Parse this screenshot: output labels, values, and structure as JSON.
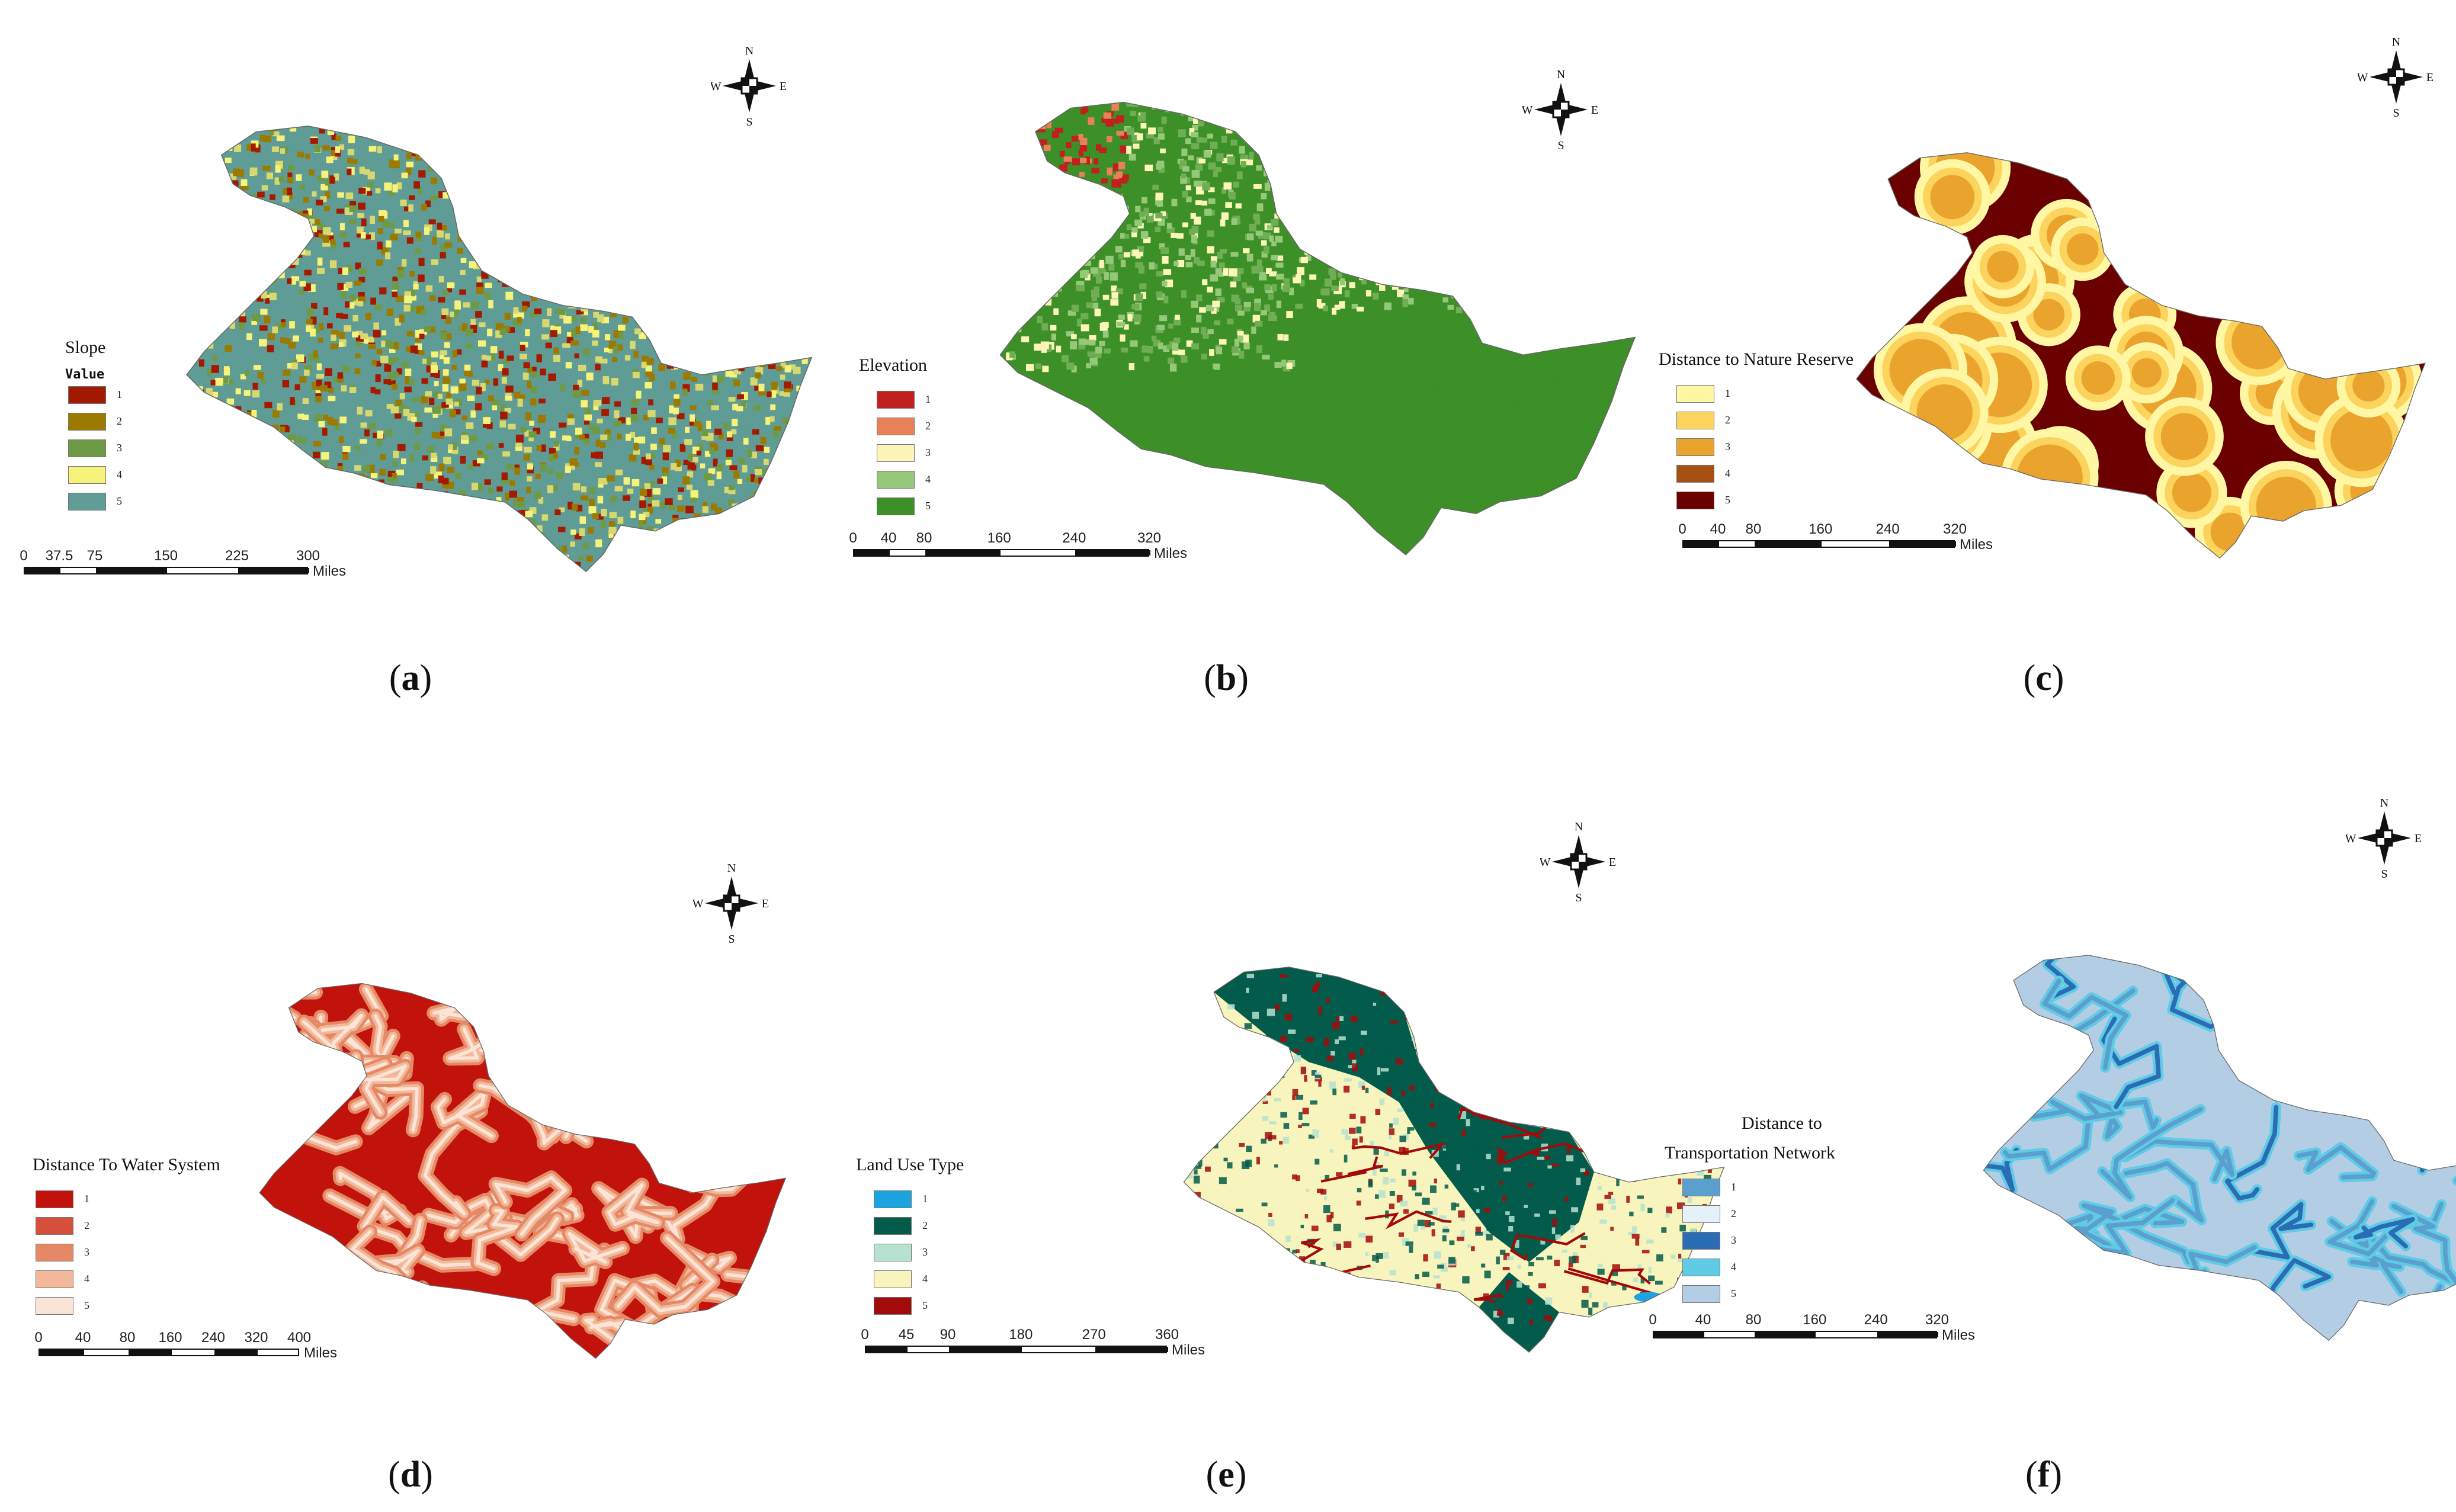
{
  "compass": {
    "n": "N",
    "s": "S",
    "e": "E",
    "w": "W"
  },
  "units": "Miles",
  "panels": [
    {
      "id": "a",
      "caption": "a",
      "legend_title": "Slope",
      "legend_subtitle": "Value",
      "classes": [
        {
          "label": "1",
          "color": "#a31a00"
        },
        {
          "label": "2",
          "color": "#9c7a00"
        },
        {
          "label": "3",
          "color": "#6e9a45"
        },
        {
          "label": "4",
          "color": "#f7f27a"
        },
        {
          "label": "5",
          "color": "#5f9c96"
        }
      ],
      "scale_ticks": [
        "0",
        "37.5",
        "75",
        "150",
        "225",
        "300"
      ],
      "map_base": "#5f9c96",
      "map_palette": [
        "#a31a00",
        "#9c7a00",
        "#6e9a45",
        "#d8d870",
        "#f7f27a"
      ]
    },
    {
      "id": "b",
      "caption": "b",
      "legend_title": "Elevation",
      "legend_subtitle": "",
      "classes": [
        {
          "label": "1",
          "color": "#c21f1f"
        },
        {
          "label": "2",
          "color": "#e8815a"
        },
        {
          "label": "3",
          "color": "#fbf5b8"
        },
        {
          "label": "4",
          "color": "#95c878"
        },
        {
          "label": "5",
          "color": "#3d8f27"
        }
      ],
      "scale_ticks": [
        "0",
        "40",
        "80",
        "160",
        "240",
        "320"
      ],
      "map_base": "#3d8f27",
      "map_palette": [
        "#c21f1f",
        "#e8815a",
        "#fbf5b8",
        "#95c878",
        "#6fae54"
      ]
    },
    {
      "id": "c",
      "caption": "c",
      "legend_title": "Distance to Nature Reserve",
      "legend_subtitle": "",
      "classes": [
        {
          "label": "1",
          "color": "#fff7a3"
        },
        {
          "label": "2",
          "color": "#fcd35c"
        },
        {
          "label": "3",
          "color": "#eaa42d"
        },
        {
          "label": "4",
          "color": "#a84f12"
        },
        {
          "label": "5",
          "color": "#6b0000"
        }
      ],
      "scale_ticks": [
        "0",
        "40",
        "80",
        "160",
        "240",
        "320"
      ],
      "map_base": "#6b0000",
      "map_palette": [
        "#fff7a3",
        "#fcd35c",
        "#eaa42d"
      ]
    },
    {
      "id": "d",
      "caption": "d",
      "legend_title": "Distance To Water System",
      "legend_subtitle": "",
      "classes": [
        {
          "label": "1",
          "color": "#c1120c"
        },
        {
          "label": "2",
          "color": "#d5503a"
        },
        {
          "label": "3",
          "color": "#e48866"
        },
        {
          "label": "4",
          "color": "#f2b899"
        },
        {
          "label": "5",
          "color": "#fbe3d5"
        }
      ],
      "scale_ticks": [
        "0",
        "40",
        "80",
        "160",
        "240",
        "320",
        "400"
      ],
      "map_base": "#c1120c",
      "map_palette": [
        "#fbe3d5",
        "#f2b899",
        "#e48866"
      ]
    },
    {
      "id": "e",
      "caption": "e",
      "legend_title": "Land Use Type",
      "legend_subtitle": "",
      "classes": [
        {
          "label": "1",
          "color": "#1ba4e0"
        },
        {
          "label": "2",
          "color": "#035b4b"
        },
        {
          "label": "3",
          "color": "#b7e2cf"
        },
        {
          "label": "4",
          "color": "#f7f4bd"
        },
        {
          "label": "5",
          "color": "#a30a0a"
        }
      ],
      "scale_ticks": [
        "0",
        "45",
        "90",
        "180",
        "270",
        "360"
      ],
      "map_base": "#f7f4bd",
      "map_palette": [
        "#035b4b",
        "#a30a0a",
        "#b7e2cf",
        "#1ba4e0"
      ]
    },
    {
      "id": "f",
      "caption": "f",
      "legend_title": "Distance to",
      "legend_title2": "Transportation Network",
      "legend_subtitle": "",
      "classes": [
        {
          "label": "1",
          "color": "#5b9fce"
        },
        {
          "label": "2",
          "color": "#e4f1f9"
        },
        {
          "label": "3",
          "color": "#2a6db5"
        },
        {
          "label": "4",
          "color": "#5fcbe5"
        },
        {
          "label": "5",
          "color": "#b3cde5"
        }
      ],
      "scale_ticks": [
        "0",
        "40",
        "80",
        "160",
        "240",
        "320"
      ],
      "map_base": "#b3cde5",
      "map_palette": [
        "#5fcbe5",
        "#2a6db5",
        "#5b9fce"
      ]
    }
  ]
}
